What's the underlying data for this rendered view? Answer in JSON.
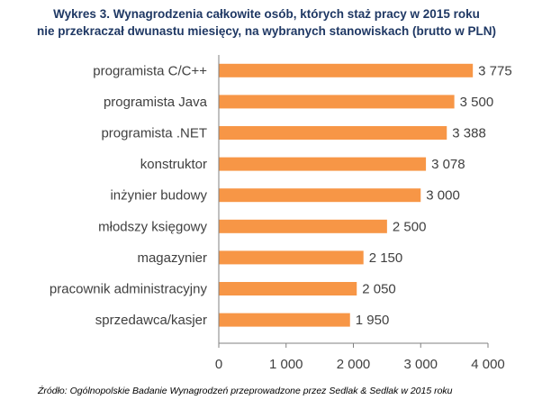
{
  "title_line1": "Wykres 3. Wynagrodzenia całkowite osób, których staż pracy w 2015 roku",
  "title_line2": "nie przekraczał dwunastu miesięcy, na wybranych stanowiskach (brutto w PLN)",
  "source": "Źródło: Ogólnopolskie Badanie Wynagrodzeń przeprowadzone  przez Sedlak & Sedlak w 2015 roku",
  "colors": {
    "bar": "#f79646",
    "axis": "#808080",
    "grid": "#d9d9d9",
    "title": "#1f3864"
  },
  "chart_data": {
    "type": "bar",
    "orientation": "horizontal",
    "categories": [
      "programista C/C++",
      "programista Java",
      "programista .NET",
      "konstruktor",
      "inżynier budowy",
      "młodszy księgowy",
      "magazynier",
      "pracownik administracyjny",
      "sprzedawca/kasjer"
    ],
    "values": [
      3775,
      3500,
      3388,
      3078,
      3000,
      2500,
      2150,
      2050,
      1950
    ],
    "value_labels": [
      "3 775",
      "3 500",
      "3 388",
      "3 078",
      "3 000",
      "2 500",
      "2 150",
      "2 050",
      "1 950"
    ],
    "xlim": [
      0,
      4000
    ],
    "x_ticks": [
      0,
      1000,
      2000,
      3000,
      4000
    ],
    "x_tick_labels": [
      "0",
      "1 000",
      "2 000",
      "3 000",
      "4 000"
    ],
    "grid": false,
    "legend": "none"
  }
}
